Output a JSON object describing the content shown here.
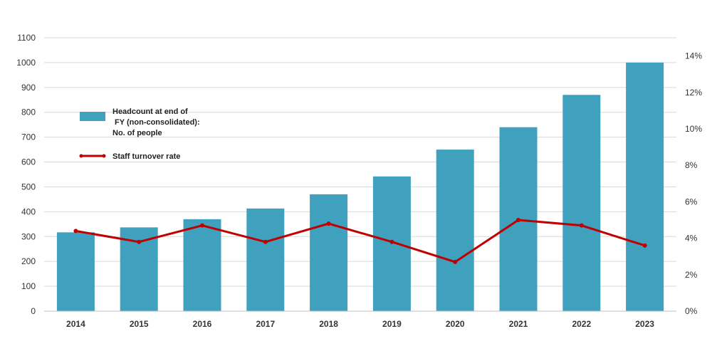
{
  "chart_data": {
    "type": "bar",
    "categories": [
      "2014",
      "2015",
      "2016",
      "2017",
      "2018",
      "2019",
      "2020",
      "2021",
      "2022",
      "2023"
    ],
    "series": [
      {
        "name": "Headcount at end of FY (non-consolidated): No. of people",
        "legend_lines": [
          "Headcount at end of",
          " FY (non-consolidated):",
          "No. of people"
        ],
        "type": "bar",
        "axis": "left",
        "color": "#3fa1bd",
        "values": [
          317,
          337,
          370,
          413,
          470,
          542,
          650,
          740,
          870,
          1000
        ]
      },
      {
        "name": "Staff turnover rate",
        "legend_lines": [
          "Staff turnover rate"
        ],
        "type": "line",
        "axis": "right",
        "color": "#c00000",
        "values": [
          4.4,
          3.8,
          4.7,
          3.8,
          4.8,
          3.8,
          2.7,
          5.0,
          4.7,
          3.6
        ]
      }
    ],
    "y_left": {
      "ylim": [
        0,
        1100
      ],
      "ticks": [
        0,
        100,
        200,
        300,
        400,
        500,
        600,
        700,
        800,
        900,
        1000,
        1100
      ]
    },
    "y_right": {
      "ylim": [
        0,
        15
      ],
      "ticks": [
        0,
        2,
        4,
        6,
        8,
        10,
        12,
        14
      ],
      "tick_suffix": "%"
    },
    "grid": true,
    "legend_position": "top-left",
    "title": "",
    "xlabel": "",
    "ylabel": ""
  }
}
